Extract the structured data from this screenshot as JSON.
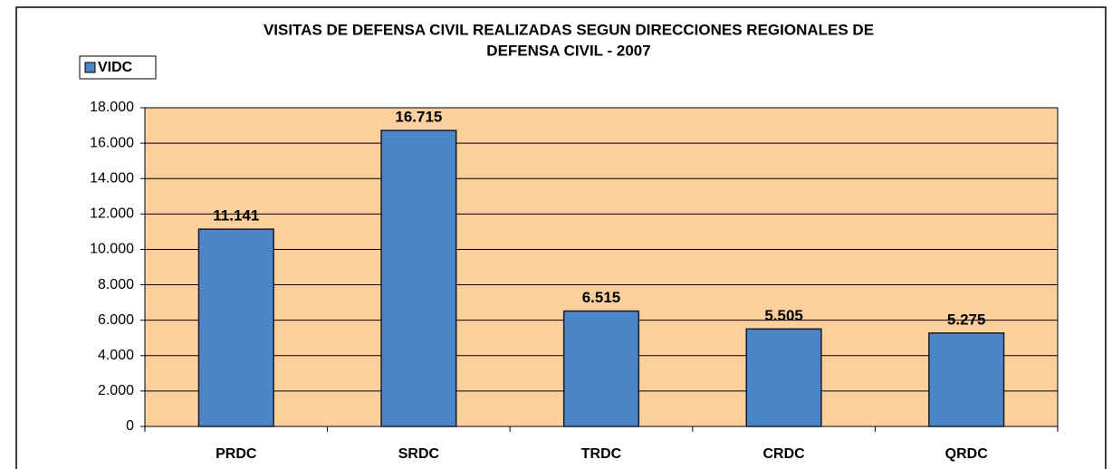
{
  "chart_data": {
    "type": "bar",
    "title": [
      "VISITAS DE DEFENSA CIVIL REALIZADAS SEGUN DIRECCIONES REGIONALES DE",
      "DEFENSA CIVIL -  2007"
    ],
    "categories": [
      "PRDC",
      "SRDC",
      "TRDC",
      "CRDC",
      "QRDC"
    ],
    "series": [
      {
        "name": "VIDC",
        "color": "#4a86c8",
        "values": [
          11141,
          16715,
          6515,
          5505,
          5275
        ],
        "value_labels": [
          "11.141",
          "16.715",
          "6.515",
          "5.505",
          "5.275"
        ]
      }
    ],
    "ylim": [
      0,
      18000
    ],
    "yticks": [
      0,
      {
        "value": 2000,
        "label": "2.000"
      },
      {
        "value": 4000,
        "label": "4.000"
      },
      {
        "value": 6000,
        "label": "6.000"
      },
      {
        "value": 8000,
        "label": "8.000"
      },
      {
        "value": 10000,
        "label": "10.000"
      },
      {
        "value": 12000,
        "label": "12.000"
      },
      {
        "value": 14000,
        "label": "14.000"
      },
      {
        "value": 16000,
        "label": "16.000"
      },
      {
        "value": 18000,
        "label": "18.000"
      }
    ],
    "grid": true,
    "legend": "top-left",
    "plot_background": "#fbd09c"
  }
}
